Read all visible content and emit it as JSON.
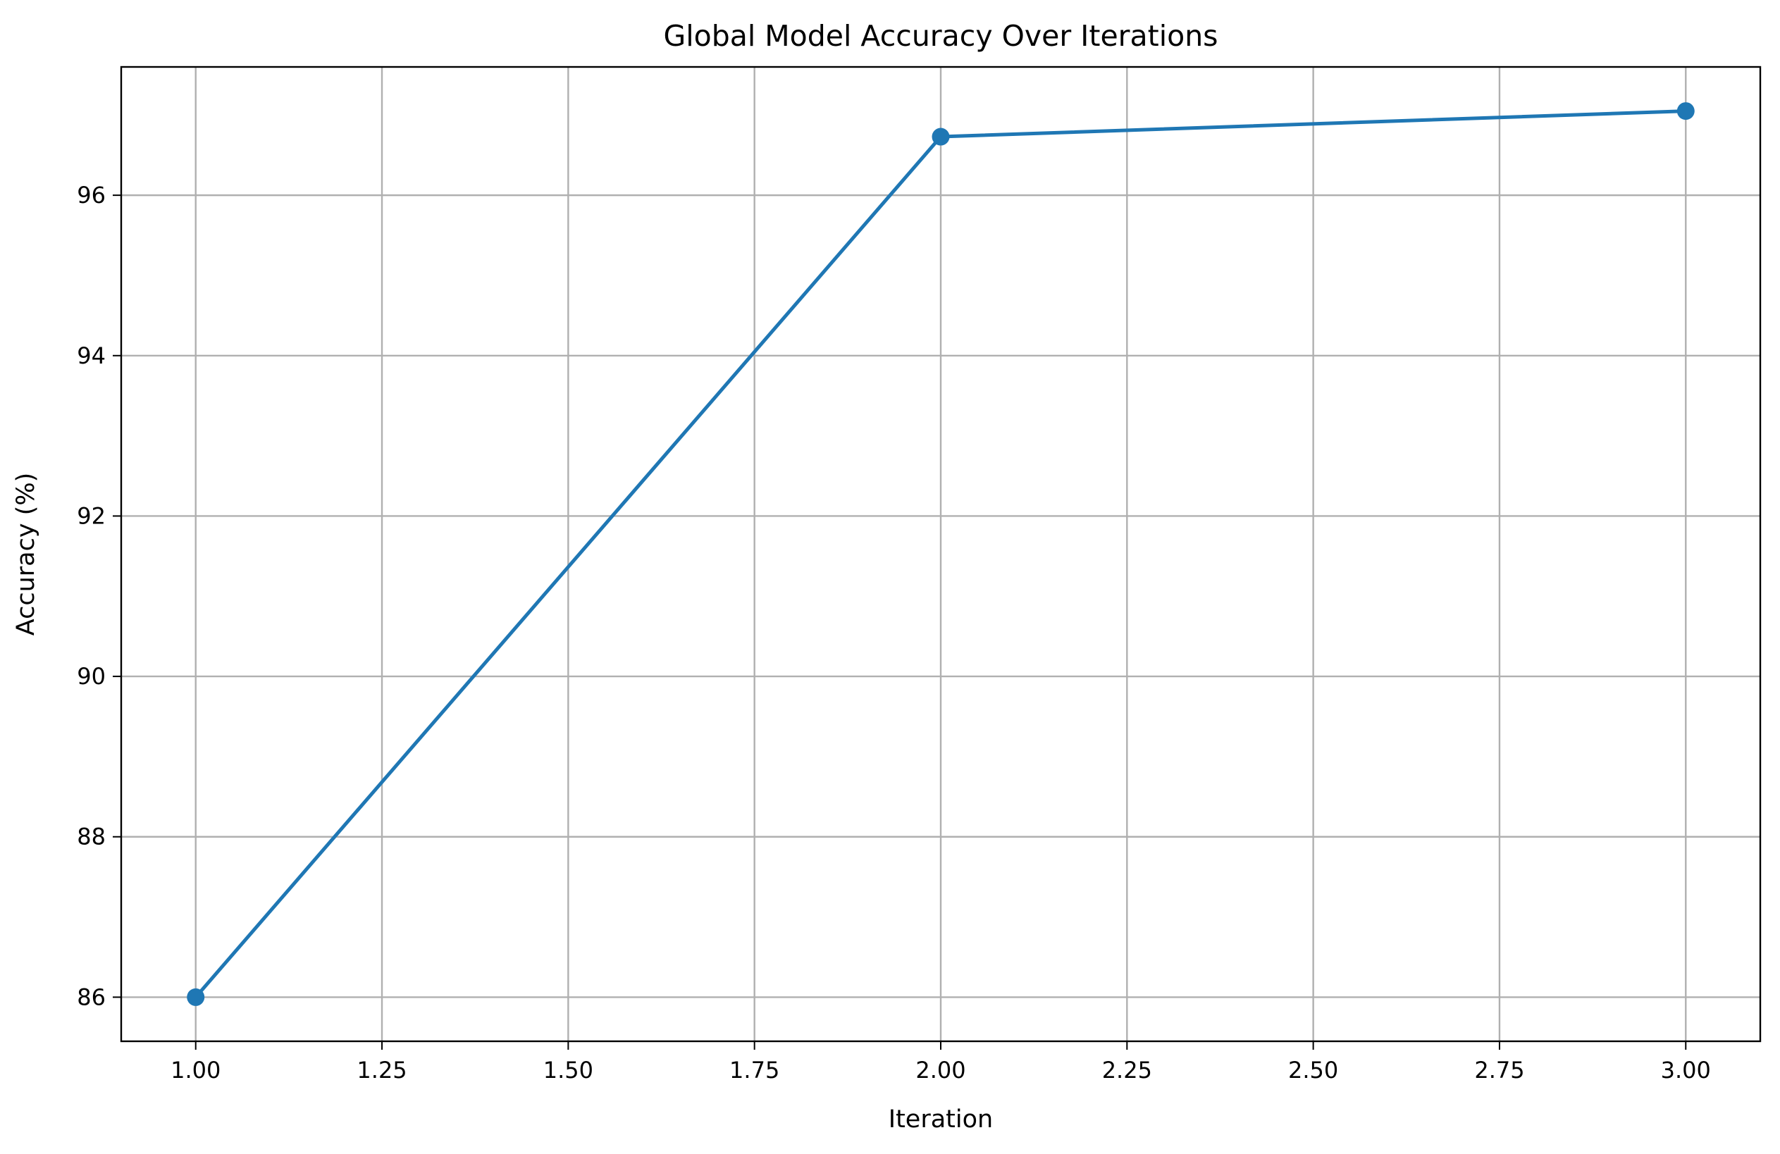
{
  "chart_data": {
    "type": "line",
    "title": "Global Model Accuracy Over Iterations",
    "xlabel": "Iteration",
    "ylabel": "Accuracy (%)",
    "xlim": [
      0.9,
      3.1
    ],
    "ylim": [
      85.45,
      97.6
    ],
    "xticks": [
      1.0,
      1.25,
      1.5,
      1.75,
      2.0,
      2.25,
      2.5,
      2.75,
      3.0
    ],
    "xtick_labels": [
      "1.00",
      "1.25",
      "1.50",
      "1.75",
      "2.00",
      "2.25",
      "2.50",
      "2.75",
      "3.00"
    ],
    "yticks": [
      86,
      88,
      90,
      92,
      94,
      96
    ],
    "ytick_labels": [
      "86",
      "88",
      "90",
      "92",
      "94",
      "96"
    ],
    "grid": true,
    "series": [
      {
        "x": [
          1,
          2,
          3
        ],
        "y": [
          86.0,
          96.73,
          97.05
        ],
        "color": "#1f77b4",
        "marker": "circle"
      }
    ]
  }
}
